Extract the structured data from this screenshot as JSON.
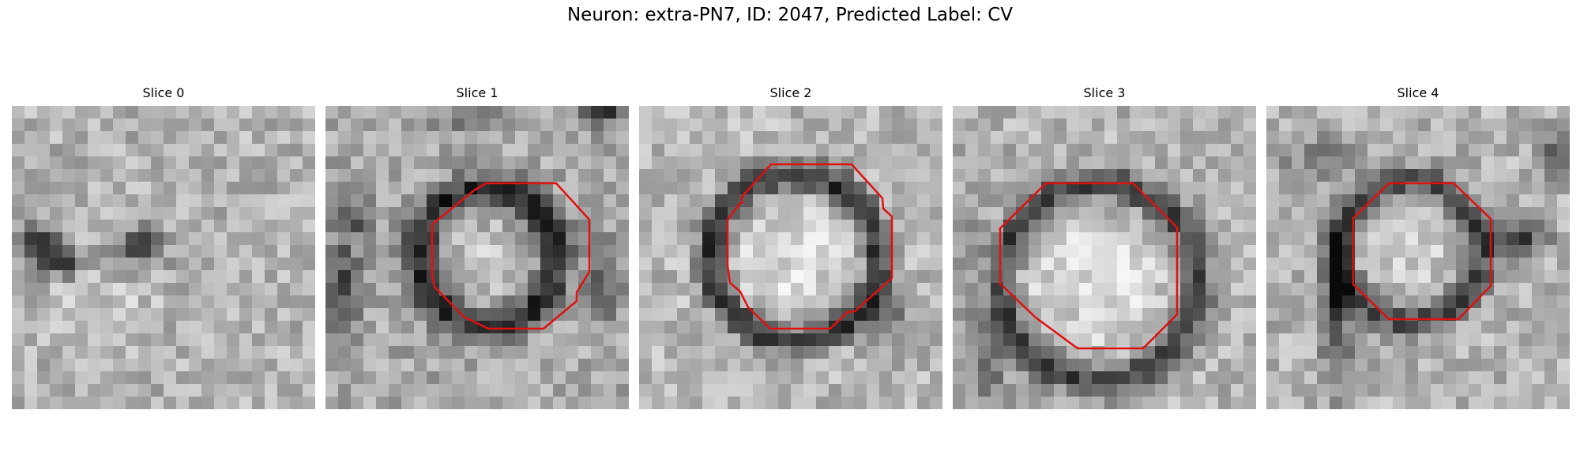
{
  "figure": {
    "title": "Neuron: extra-PN7, ID: 2047, Predicted Label: CV"
  },
  "panels": [
    {
      "title": "Slice 0",
      "has_contour": false
    },
    {
      "title": "Slice 1",
      "has_contour": true
    },
    {
      "title": "Slice 2",
      "has_contour": true
    },
    {
      "title": "Slice 3",
      "has_contour": true
    },
    {
      "title": "Slice 4",
      "has_contour": true
    }
  ],
  "colors": {
    "contour": "#e01010",
    "colormap": "gray"
  }
}
